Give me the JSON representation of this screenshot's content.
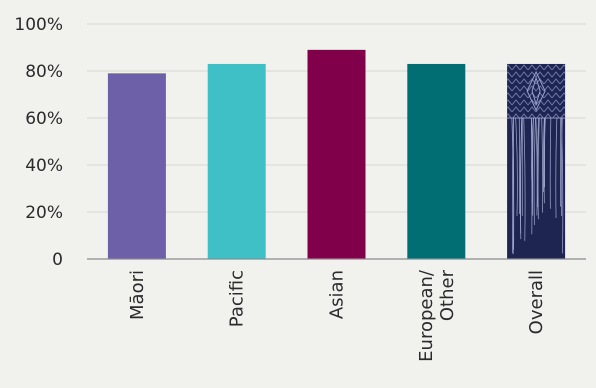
{
  "chart_data": {
    "type": "bar",
    "title": "",
    "xlabel": "",
    "ylabel": "",
    "ylim": [
      0,
      100
    ],
    "grid": true,
    "y_ticks": [
      "0",
      "20%",
      "40%",
      "60%",
      "80%",
      "100%"
    ],
    "y_tick_values": [
      0,
      20,
      40,
      60,
      80,
      100
    ],
    "categories": [
      {
        "lines": [
          "Māori"
        ]
      },
      {
        "lines": [
          "Pacific"
        ]
      },
      {
        "lines": [
          "Asian"
        ]
      },
      {
        "lines": [
          "European/",
          "Other"
        ]
      },
      {
        "lines": [
          "Overall"
        ]
      }
    ],
    "values": [
      79,
      83,
      89,
      83,
      83
    ],
    "colors": [
      "#6e60a8",
      "#3ec0c6",
      "#80004a",
      "#006e72",
      "#1d2550"
    ],
    "overall_bar_pattern": "woven-flax-icon"
  }
}
